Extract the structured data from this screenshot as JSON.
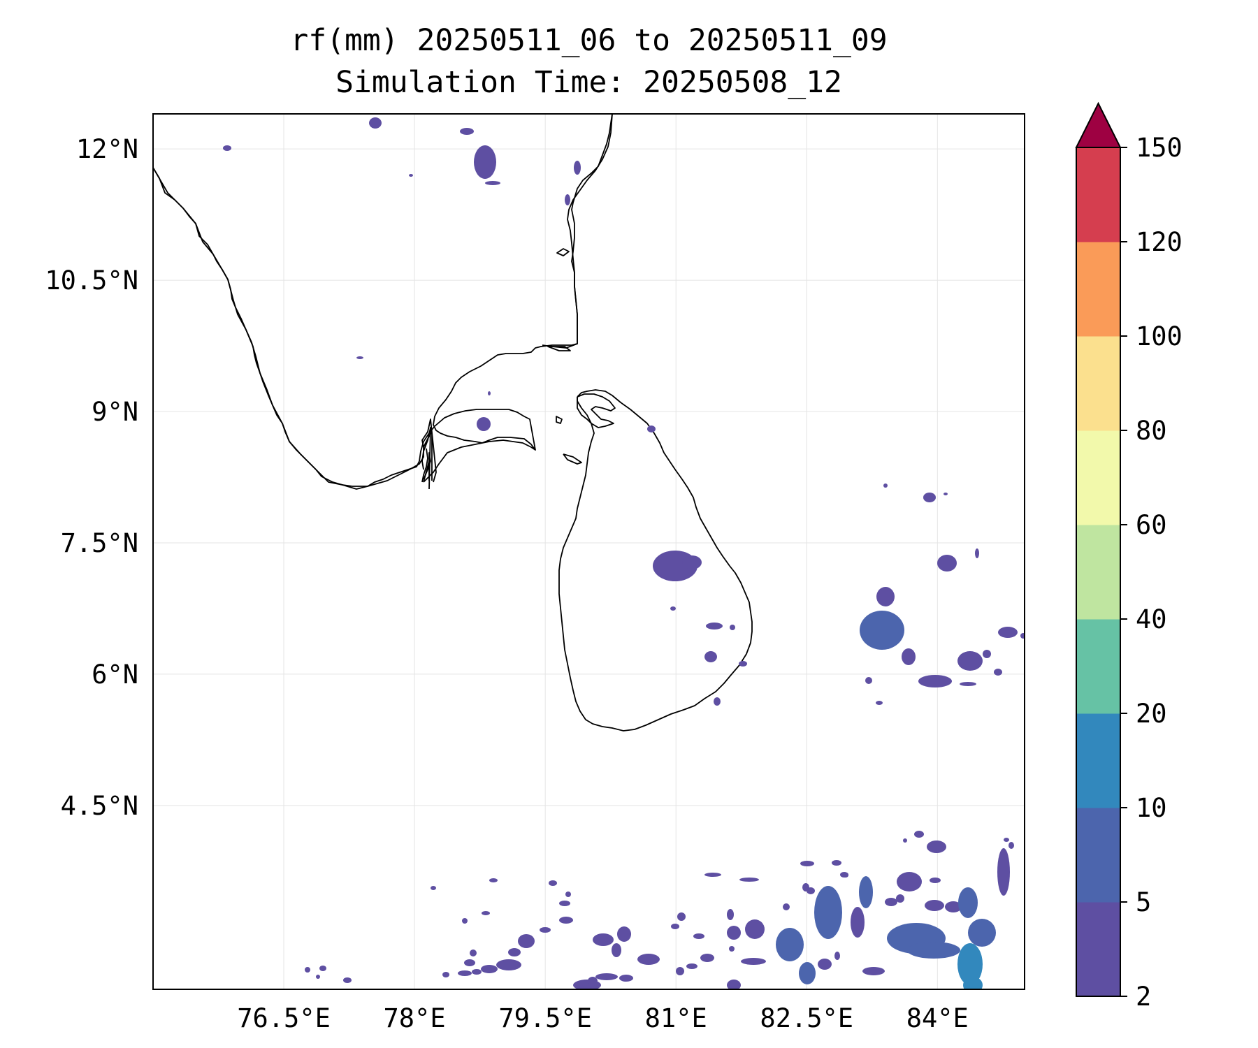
{
  "title": {
    "line1": "rf(mm) 20250511_06 to 20250511_09",
    "line2": "Simulation Time: 20250508_12"
  },
  "map": {
    "lon_range": [
      75.0,
      85.0
    ],
    "lat_range": [
      2.4,
      12.4
    ],
    "gridlines": true,
    "lon_ticks": [
      {
        "value": 76.5,
        "label": "76.5°E"
      },
      {
        "value": 78.0,
        "label": "78°E"
      },
      {
        "value": 79.5,
        "label": "79.5°E"
      },
      {
        "value": 81.0,
        "label": "81°E"
      },
      {
        "value": 82.5,
        "label": "82.5°E"
      },
      {
        "value": 84.0,
        "label": "84°E"
      }
    ],
    "lat_ticks": [
      {
        "value": 12.0,
        "label": "12°N"
      },
      {
        "value": 10.5,
        "label": "10.5°N"
      },
      {
        "value": 9.0,
        "label": "9°N"
      },
      {
        "value": 7.5,
        "label": "7.5°N"
      },
      {
        "value": 6.0,
        "label": "6°N"
      },
      {
        "value": 4.5,
        "label": "4.5°N"
      }
    ],
    "rain_colors": {
      "2-5": "#5e4fa2",
      "5-10": "#4c65ad",
      "10-20": "#3288bd"
    }
  },
  "colorbar": {
    "labels": [
      "2",
      "5",
      "10",
      "20",
      "40",
      "60",
      "80",
      "100",
      "120",
      "150"
    ],
    "colors": [
      "#5e4fa2",
      "#4c65ad",
      "#3288bd",
      "#66c2a5",
      "#bfe5a0",
      "#f2f9ab",
      "#fbe08e",
      "#fa9b58",
      "#d53e4f"
    ],
    "extend_color": "#9e0142",
    "extend": "max"
  }
}
